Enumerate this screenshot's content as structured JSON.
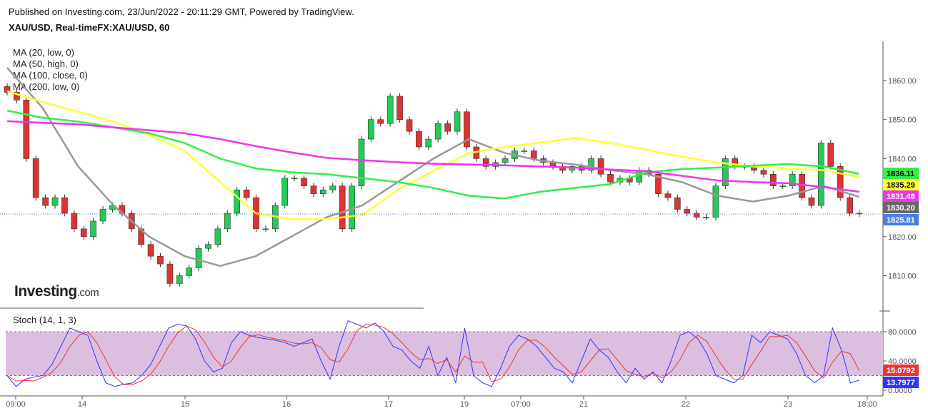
{
  "header": {
    "published": "Published on Investing.com, 23/Jun/2022 - 20:11:29 GMT, Powered by TradingView.",
    "symbol": "XAU/USD, Real-timeFX:XAU/USD, 60"
  },
  "legend": [
    "MA (20, low, 0)",
    "MA (50, high, 0)",
    "MA (100, close, 0)",
    "MA (200, low, 0)"
  ],
  "logo": {
    "main": "Investing",
    "suffix": ".com"
  },
  "stoch_title": "Stoch (14, 1, 3)",
  "chart_data": [
    {
      "type": "candlestick",
      "ylim": [
        1803,
        1868
      ],
      "y_ticks": [
        "1860.00",
        "1850.00",
        "1840.00",
        "1820.00",
        "1810.00"
      ],
      "x_ticks": [
        "09:00",
        "14",
        "15",
        "16",
        "17",
        "19",
        "07:00",
        "21",
        "22",
        "23",
        "18:00"
      ],
      "closes": [
        1857,
        1855,
        1840,
        1830,
        1828,
        1830,
        1826,
        1822,
        1820,
        1824,
        1827,
        1828,
        1826,
        1822,
        1818,
        1815,
        1813,
        1808,
        1810,
        1812,
        1817,
        1818,
        1822,
        1826,
        1832,
        1830,
        1822,
        1822,
        1828,
        1835,
        1835,
        1833,
        1831,
        1832,
        1833,
        1822,
        1833,
        1845,
        1850,
        1849,
        1856,
        1850,
        1847,
        1843,
        1845,
        1849,
        1847,
        1852,
        1843,
        1840,
        1838,
        1839,
        1840,
        1842,
        1842,
        1840,
        1839,
        1838,
        1837,
        1838,
        1837,
        1840,
        1836,
        1834,
        1835,
        1834,
        1837,
        1836,
        1831,
        1830,
        1827,
        1826,
        1825,
        1825,
        1833,
        1840,
        1838,
        1838,
        1837,
        1836,
        1833,
        1833,
        1836,
        1830,
        1828,
        1844,
        1838,
        1830,
        1826,
        1825.81
      ],
      "moving_averages": [
        {
          "name": "MA (20, low, 0)",
          "color": "#999999",
          "last": "1830.20",
          "values": [
            1863.3,
            1853,
            1838,
            1828,
            1820,
            1815,
            1812.5,
            1815,
            1820,
            1825,
            1828,
            1834,
            1840,
            1845,
            1841.5,
            1839.5,
            1838.5,
            1837,
            1836,
            1834,
            1830.5,
            1829,
            1830.5,
            1833,
            1830.2
          ]
        },
        {
          "name": "MA (50, high, 0)",
          "color": "#ffff33",
          "last": "1835.29",
          "values": [
            1857.3,
            1854.5,
            1852,
            1849.5,
            1846,
            1842,
            1834,
            1826,
            1824.5,
            1824.5,
            1825.5,
            1832,
            1836.8,
            1841.4,
            1843,
            1844.1,
            1845.3,
            1844,
            1842.3,
            1840.5,
            1839,
            1838,
            1837.5,
            1837,
            1835.3
          ]
        },
        {
          "name": "MA (100, close, 0)",
          "color": "#33ee44",
          "last": "1836.11",
          "values": [
            1852.3,
            1850.5,
            1849.5,
            1848,
            1846.5,
            1844,
            1840,
            1837.5,
            1836.5,
            1836,
            1835,
            1834,
            1832.5,
            1830.5,
            1829.8,
            1831.5,
            1832.5,
            1833.5,
            1836.5,
            1837.3,
            1837.7,
            1838.2,
            1838.6,
            1838,
            1836.1
          ]
        },
        {
          "name": "MA (200, low, 0)",
          "color": "#ee33ee",
          "last": "1831.48",
          "values": [
            1849.6,
            1849.2,
            1848.8,
            1848,
            1847.3,
            1846.5,
            1845,
            1843.2,
            1841.6,
            1840.2,
            1839.6,
            1839.1,
            1838.7,
            1838.5,
            1838.3,
            1838,
            1837.7,
            1837.2,
            1836.8,
            1835.6,
            1834.4,
            1834,
            1833.7,
            1832.7,
            1831.5
          ]
        }
      ],
      "last_price": "1825.81",
      "colors": {
        "up": "#22cc55",
        "down": "#dd3333",
        "last_price": "#4a7fe0"
      }
    },
    {
      "type": "line",
      "title": "Stoch (14, 1, 3)",
      "ylim": [
        0,
        100
      ],
      "y_ticks": [
        "80.0000",
        "40.0000",
        "0.0000"
      ],
      "band": [
        20,
        80
      ],
      "k": {
        "color": "#3333ff",
        "last": "13.7977",
        "values": [
          20,
          5,
          15,
          18,
          20,
          35,
          60,
          85,
          80,
          75,
          40,
          10,
          5,
          8,
          10,
          20,
          35,
          60,
          85,
          90,
          88,
          70,
          40,
          25,
          30,
          65,
          80,
          75,
          72,
          70,
          68,
          65,
          60,
          65,
          70,
          40,
          15,
          60,
          95,
          90,
          85,
          92,
          80,
          60,
          55,
          40,
          30,
          60,
          20,
          45,
          10,
          85,
          20,
          10,
          5,
          30,
          60,
          75,
          70,
          60,
          45,
          30,
          25,
          10,
          40,
          70,
          55,
          45,
          25,
          10,
          30,
          15,
          25,
          10,
          40,
          75,
          80,
          70,
          50,
          20,
          15,
          10,
          20,
          75,
          65,
          80,
          75,
          70,
          50,
          20,
          10,
          20,
          85,
          55,
          10,
          13.8
        ]
      },
      "d": {
        "color": "#ee3333",
        "last": "15.0792"
      }
    }
  ]
}
